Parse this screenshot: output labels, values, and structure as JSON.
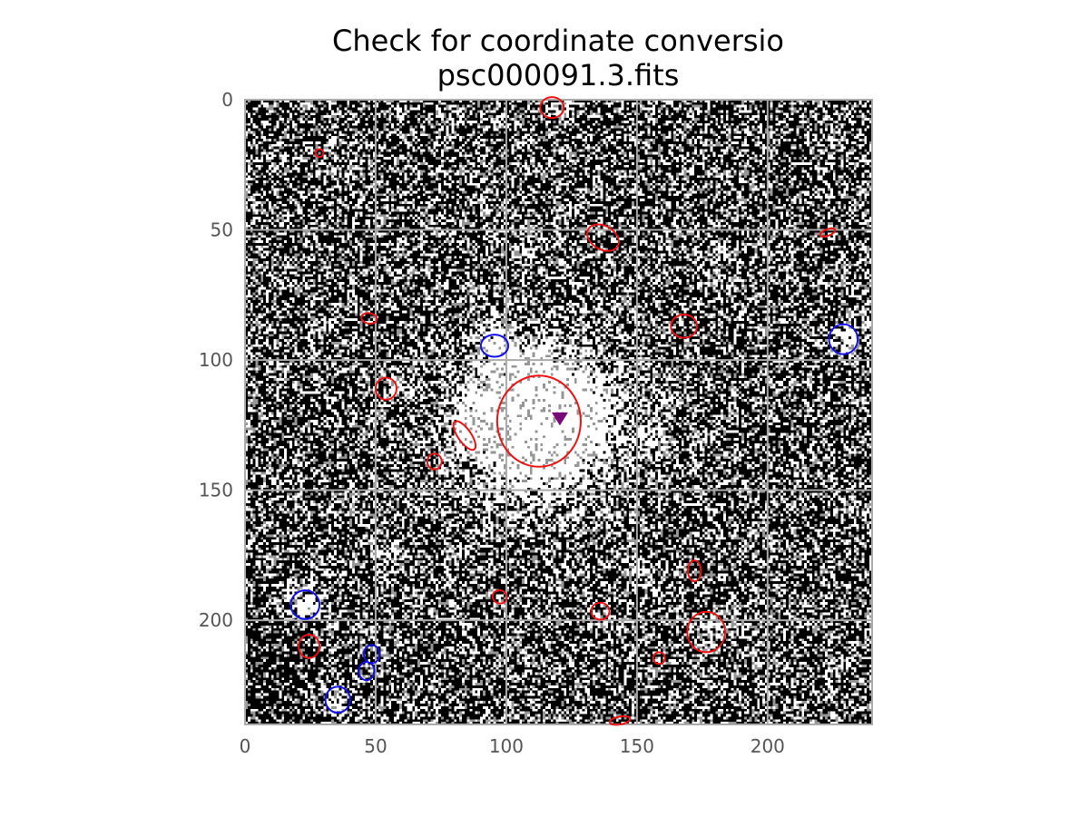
{
  "title_lines": [
    "Check for coordinate conversio",
    "psc000091.3.fits"
  ],
  "chart_data": {
    "type": "scatter",
    "title": "Check for coordinate conversio\npsc000091.3.fits",
    "xlabel": "",
    "ylabel": "",
    "xlim": [
      0,
      240
    ],
    "ylim": [
      240,
      0
    ],
    "y_inverted": true,
    "x_ticks": [
      0,
      50,
      100,
      150,
      200
    ],
    "y_ticks": [
      0,
      50,
      100,
      150,
      200
    ],
    "grid": true,
    "background": "noisy black and white FITS image with bright central source",
    "series": [
      {
        "color": "#ee1111",
        "marker": "ellipse",
        "points": [
          {
            "x": 117.5,
            "y": 3,
            "w": 9,
            "h": 8,
            "angle": 0
          },
          {
            "x": 28.5,
            "y": 20.5,
            "w": 3,
            "h": 3,
            "angle": 0
          },
          {
            "x": 137,
            "y": 53,
            "w": 13,
            "h": 9,
            "angle": 30
          },
          {
            "x": 223,
            "y": 51,
            "w": 6,
            "h": 2.5,
            "angle": -20
          },
          {
            "x": 47.5,
            "y": 84,
            "w": 6,
            "h": 4,
            "angle": 10
          },
          {
            "x": 168,
            "y": 87,
            "w": 10,
            "h": 9,
            "angle": 0
          },
          {
            "x": 54,
            "y": 111,
            "w": 8,
            "h": 8.5,
            "angle": 0
          },
          {
            "x": 112.5,
            "y": 123.5,
            "w": 32,
            "h": 35,
            "angle": 0
          },
          {
            "x": 84,
            "y": 129,
            "w": 5,
            "h": 13,
            "angle": -35
          },
          {
            "x": 72.5,
            "y": 139,
            "w": 5.5,
            "h": 6,
            "angle": 0
          },
          {
            "x": 172,
            "y": 181,
            "w": 5,
            "h": 8,
            "angle": 0
          },
          {
            "x": 97.5,
            "y": 191,
            "w": 5.5,
            "h": 5,
            "angle": 20
          },
          {
            "x": 136,
            "y": 196.5,
            "w": 7,
            "h": 6.5,
            "angle": 0
          },
          {
            "x": 24.5,
            "y": 210,
            "w": 8,
            "h": 9,
            "angle": 0
          },
          {
            "x": 176.5,
            "y": 204.5,
            "w": 14.5,
            "h": 15.5,
            "angle": 0
          },
          {
            "x": 158.5,
            "y": 214.5,
            "w": 4.5,
            "h": 4.5,
            "angle": 0
          },
          {
            "x": 143.5,
            "y": 238.5,
            "w": 8,
            "h": 3,
            "angle": -10
          }
        ]
      },
      {
        "color": "#1111ee",
        "marker": "ellipse",
        "points": [
          {
            "x": 95.5,
            "y": 94.5,
            "w": 10.5,
            "h": 8.5,
            "angle": 0
          },
          {
            "x": 229,
            "y": 92,
            "w": 11,
            "h": 11.5,
            "angle": 0
          },
          {
            "x": 23,
            "y": 194,
            "w": 11,
            "h": 11,
            "angle": 0
          },
          {
            "x": 48.5,
            "y": 213,
            "w": 6,
            "h": 7,
            "angle": 0
          },
          {
            "x": 46.5,
            "y": 219.5,
            "w": 6,
            "h": 7,
            "angle": 0
          },
          {
            "x": 35.5,
            "y": 230.5,
            "w": 9.5,
            "h": 10,
            "angle": 0
          }
        ]
      },
      {
        "color": "#7a0a7a",
        "marker": "triangle-down",
        "points": [
          {
            "x": 120.5,
            "y": 122.5
          }
        ]
      }
    ]
  },
  "colors": {
    "image_dark": "#000000",
    "image_light": "#ffffff",
    "grid": "#aaaaaa",
    "frame": "#aaaaaa",
    "tick_text": "#555555"
  }
}
